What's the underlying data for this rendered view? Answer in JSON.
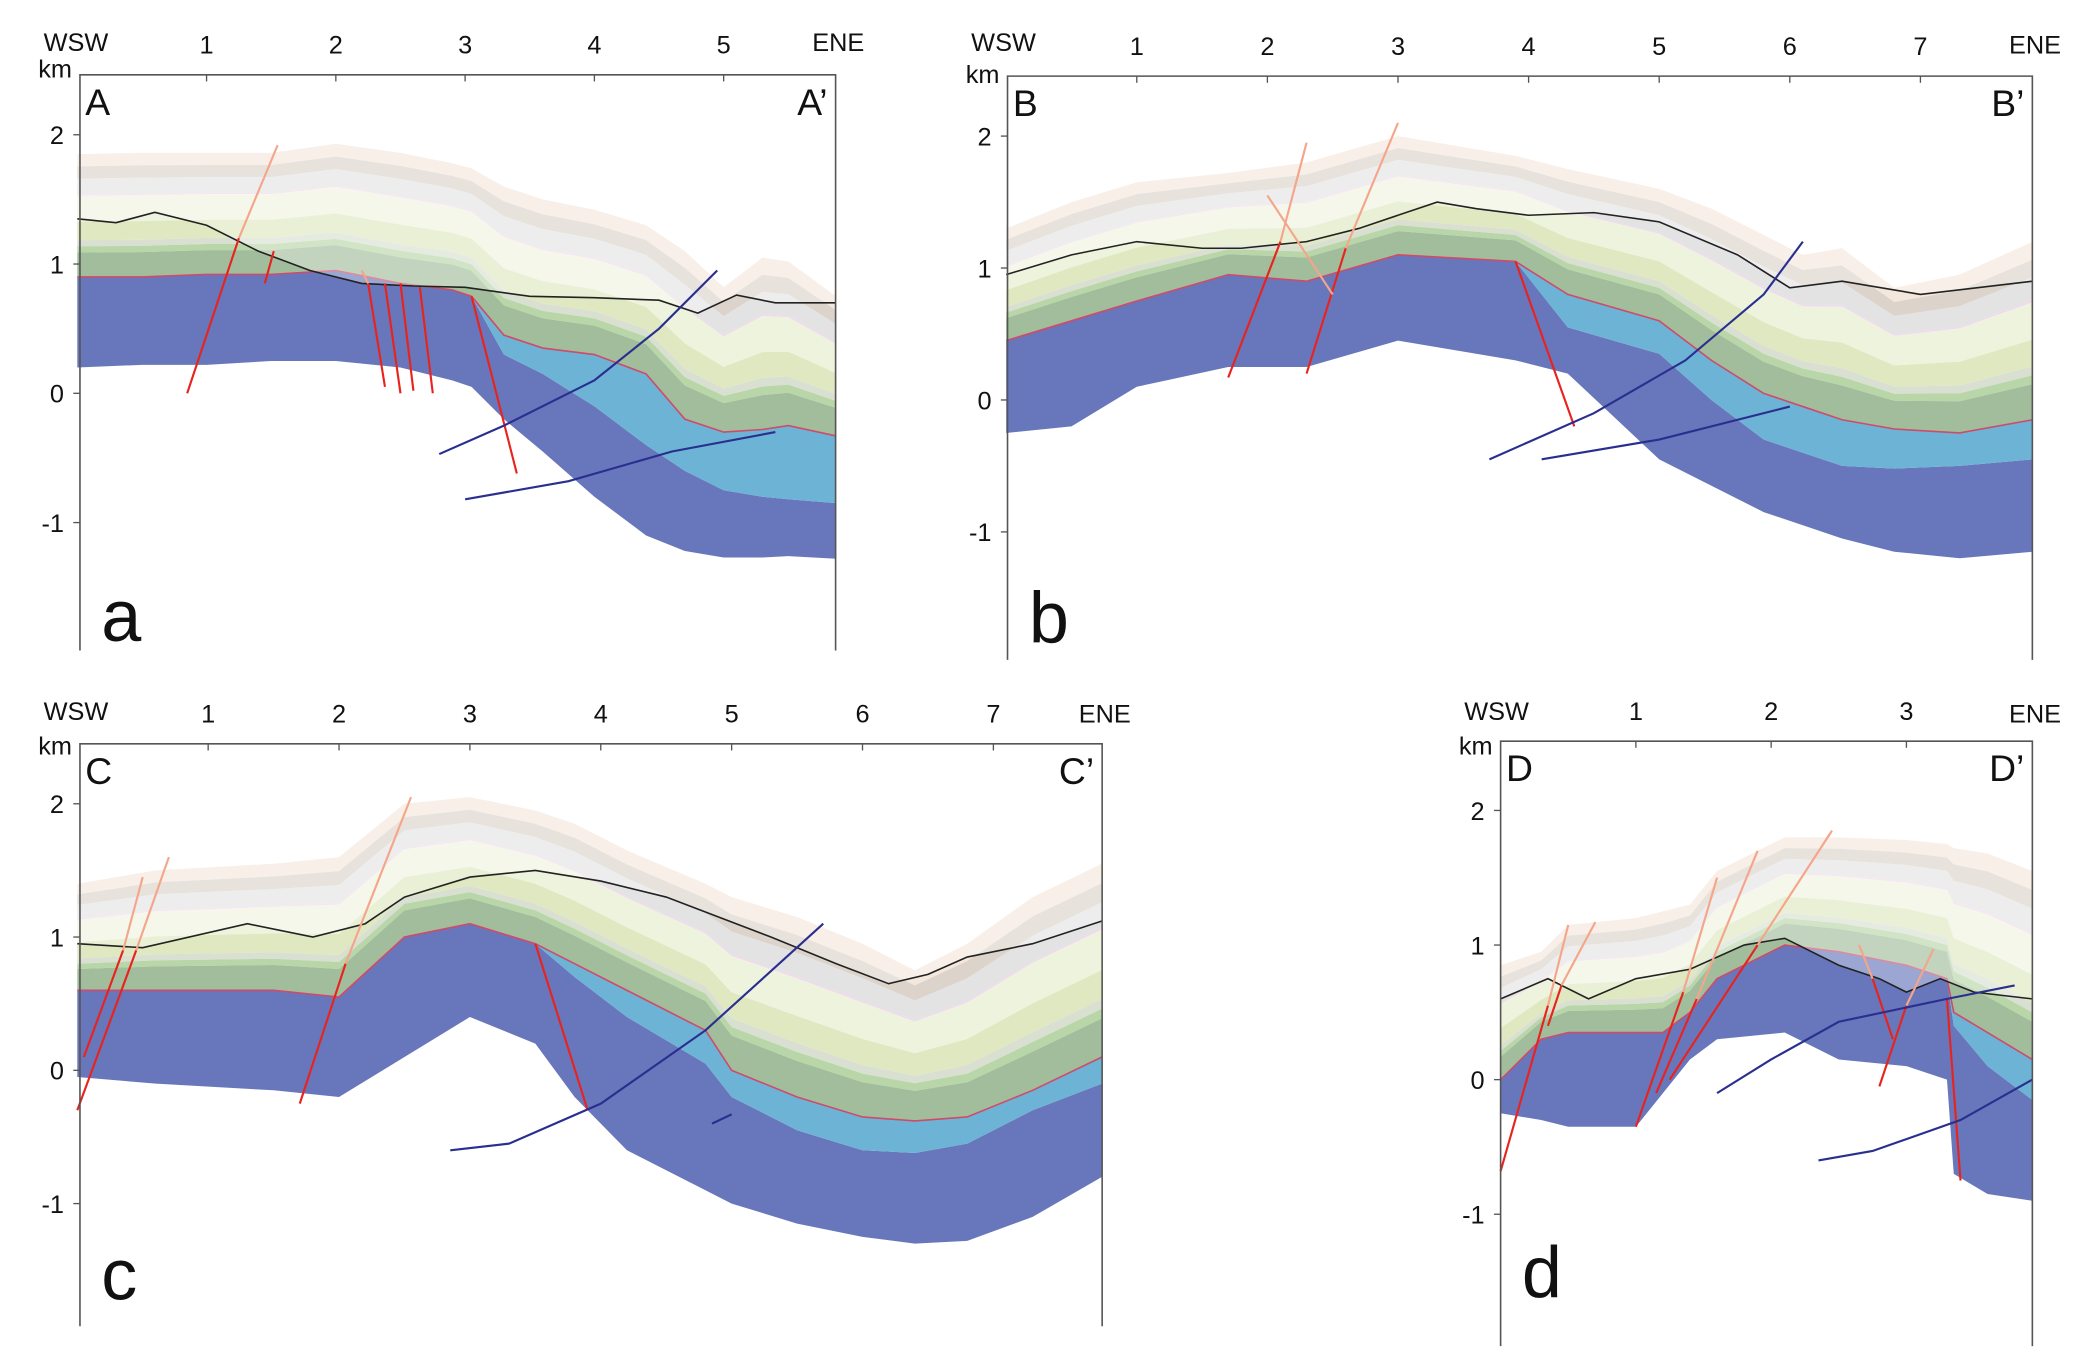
{
  "figure": {
    "unit_label": "km",
    "west_label": "WSW",
    "east_label": "ENE",
    "panels": [
      {
        "letter": "a",
        "start": "A",
        "end": "A’",
        "x_ticks": [
          "1",
          "2",
          "3",
          "4",
          "5"
        ],
        "y_ticks": [
          "2",
          "1",
          "0",
          "-1"
        ]
      },
      {
        "letter": "b",
        "start": "B",
        "end": "B’",
        "x_ticks": [
          "1",
          "2",
          "3",
          "4",
          "5",
          "6",
          "7"
        ],
        "y_ticks": [
          "2",
          "1",
          "0",
          "-1"
        ]
      },
      {
        "letter": "c",
        "start": "C",
        "end": "C’",
        "x_ticks": [
          "1",
          "2",
          "3",
          "4",
          "5",
          "6",
          "7"
        ],
        "y_ticks": [
          "2",
          "1",
          "0",
          "-1"
        ]
      },
      {
        "letter": "d",
        "start": "D",
        "end": "D’",
        "x_ticks": [
          "1",
          "2",
          "3"
        ],
        "y_ticks": [
          "2",
          "1",
          "0",
          "-1"
        ]
      }
    ],
    "colors": {
      "basement": "#6877bb",
      "cyan_unit": "#6cb3d5",
      "normal_fault": "#e8231e",
      "fault_projection": "#f4a58a",
      "thrust": "#2a2f8f",
      "topography": "#222222"
    }
  }
}
